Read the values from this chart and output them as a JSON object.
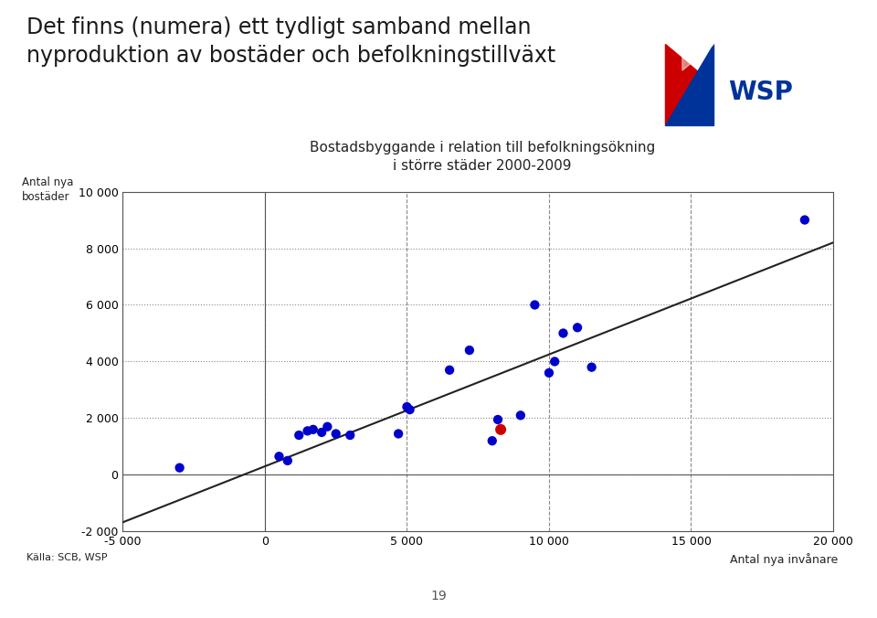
{
  "title_main_line1": "Det finns (numera) ett tydligt samband mellan",
  "title_main_line2": "nyproduktion av bostäder och befolkningstillväxt",
  "chart_title_line1": "Bostadsbyggande i relation till befolkningsökning",
  "chart_title_line2": "i större städer 2000-2009",
  "ylabel_line1": "Antal nya",
  "ylabel_line2": "bostäder",
  "ytop_label": "10 000",
  "xlabel": "Antal nya invånare",
  "source": "Källa: SCB, WSP",
  "page": "19",
  "blue_points": [
    [
      -3000,
      250
    ],
    [
      500,
      650
    ],
    [
      800,
      500
    ],
    [
      1200,
      1400
    ],
    [
      1500,
      1550
    ],
    [
      1700,
      1600
    ],
    [
      2000,
      1500
    ],
    [
      2200,
      1700
    ],
    [
      2500,
      1450
    ],
    [
      3000,
      1400
    ],
    [
      4700,
      1450
    ],
    [
      5000,
      2400
    ],
    [
      5100,
      2300
    ],
    [
      6500,
      3700
    ],
    [
      7200,
      4400
    ],
    [
      8000,
      1200
    ],
    [
      8200,
      1950
    ],
    [
      9000,
      2100
    ],
    [
      9500,
      6000
    ],
    [
      10000,
      3600
    ],
    [
      10200,
      4000
    ],
    [
      10500,
      5000
    ],
    [
      11000,
      5200
    ],
    [
      11500,
      3800
    ],
    [
      19000,
      9000
    ]
  ],
  "red_point": [
    8300,
    1600
  ],
  "trendline": {
    "x_start": -5000,
    "x_end": 20000,
    "slope": 0.395,
    "intercept": 300
  },
  "xlim": [
    -5000,
    20000
  ],
  "ylim": [
    -2000,
    10000
  ],
  "xticks": [
    -5000,
    0,
    5000,
    10000,
    15000,
    20000
  ],
  "yticks": [
    -2000,
    0,
    2000,
    4000,
    6000,
    8000,
    10000
  ],
  "xtick_labels": [
    "-5 000",
    "0",
    "5 000",
    "10 000",
    "15 000",
    "20 000"
  ],
  "ytick_labels": [
    "-2 000",
    "0",
    "2 000",
    "4 000",
    "6 000",
    "8 000",
    "10 000"
  ],
  "bg_color": "#ffffff",
  "plot_bg_color": "#ffffff",
  "grid_color": "#999999",
  "dot_color_blue": "#0000CC",
  "dot_color_red": "#CC0000",
  "trendline_color": "#222222",
  "title_color": "#333333",
  "header_bg": "#d6eaf5",
  "bottom_bar_color": "#29ABD4"
}
